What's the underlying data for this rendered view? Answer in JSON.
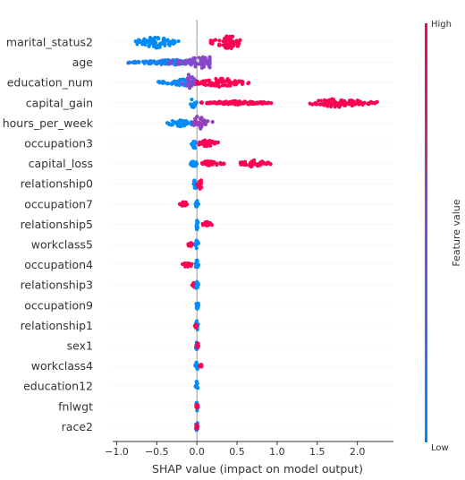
{
  "chart_data": {
    "type": "scatter",
    "subtype": "shap-beeswarm",
    "title": "",
    "xlabel": "SHAP value (impact on model output)",
    "ylabel": "",
    "xlim": [
      -1.05,
      2.45
    ],
    "xticks": [
      -1.0,
      -0.5,
      0.0,
      0.5,
      1.0,
      1.5,
      2.0
    ],
    "xtick_labels": [
      "−1.0",
      "−0.5",
      "0.0",
      "0.5",
      "1.0",
      "1.5",
      "2.0"
    ],
    "grid": false,
    "colorbar": {
      "title": "Feature value",
      "high_label": "High",
      "low_label": "Low",
      "high_color": "#ff0052",
      "mid_color": "#7c4fd8",
      "low_color": "#008bfb"
    },
    "features": [
      {
        "name": "marital_status2",
        "clusters": [
          {
            "lo": -0.8,
            "hi": -0.22,
            "center": -0.52,
            "height": 7,
            "level": 0.0
          },
          {
            "lo": 0.17,
            "hi": 0.58,
            "center": 0.4,
            "height": 8,
            "level": 1.0
          }
        ]
      },
      {
        "name": "age",
        "clusters": [
          {
            "lo": -0.88,
            "hi": 0.0,
            "center": -0.3,
            "height": 3,
            "level": 0.08
          },
          {
            "lo": -0.35,
            "hi": 0.16,
            "center": 0.1,
            "height": 8,
            "level": 0.55
          }
        ]
      },
      {
        "name": "education_num",
        "clusters": [
          {
            "lo": -0.5,
            "hi": -0.05,
            "center": -0.15,
            "height": 4,
            "level": 0.0
          },
          {
            "lo": -0.2,
            "hi": 0.0,
            "center": -0.1,
            "height": 9,
            "level": 0.55
          },
          {
            "lo": 0.0,
            "hi": 0.65,
            "center": 0.3,
            "height": 5,
            "level": 1.0
          }
        ]
      },
      {
        "name": "capital_gain",
        "clusters": [
          {
            "lo": -0.1,
            "hi": 0.0,
            "center": -0.05,
            "height": 6,
            "level": 0.0
          },
          {
            "lo": 0.05,
            "hi": 0.95,
            "center": 0.5,
            "height": 2,
            "level": 1.0
          },
          {
            "lo": 1.4,
            "hi": 2.25,
            "center": 1.75,
            "height": 5,
            "level": 1.0
          }
        ]
      },
      {
        "name": "hours_per_week",
        "clusters": [
          {
            "lo": -0.4,
            "hi": -0.02,
            "center": -0.2,
            "height": 4,
            "level": 0.0
          },
          {
            "lo": -0.05,
            "hi": 0.2,
            "center": 0.02,
            "height": 8,
            "level": 0.6
          }
        ]
      },
      {
        "name": "occupation3",
        "clusters": [
          {
            "lo": -0.08,
            "hi": 0.0,
            "center": -0.03,
            "height": 6,
            "level": 0.0
          },
          {
            "lo": 0.02,
            "hi": 0.28,
            "center": 0.12,
            "height": 4,
            "level": 1.0
          }
        ]
      },
      {
        "name": "capital_loss",
        "clusters": [
          {
            "lo": -0.08,
            "hi": 0.0,
            "center": -0.03,
            "height": 6,
            "level": 0.0
          },
          {
            "lo": 0.02,
            "hi": 0.35,
            "center": 0.15,
            "height": 3,
            "level": 1.0
          },
          {
            "lo": 0.52,
            "hi": 0.92,
            "center": 0.7,
            "height": 4,
            "level": 1.0
          }
        ]
      },
      {
        "name": "relationship0",
        "clusters": [
          {
            "lo": -0.05,
            "hi": 0.0,
            "center": -0.02,
            "height": 6,
            "level": 0.0
          },
          {
            "lo": 0.0,
            "hi": 0.08,
            "center": 0.04,
            "height": 6,
            "level": 1.0
          }
        ]
      },
      {
        "name": "occupation7",
        "clusters": [
          {
            "lo": -0.22,
            "hi": -0.1,
            "center": -0.16,
            "height": 3,
            "level": 1.0
          },
          {
            "lo": -0.02,
            "hi": 0.02,
            "center": 0.0,
            "height": 6,
            "level": 0.0
          }
        ]
      },
      {
        "name": "relationship5",
        "clusters": [
          {
            "lo": -0.02,
            "hi": 0.02,
            "center": 0.0,
            "height": 6,
            "level": 0.0
          },
          {
            "lo": 0.05,
            "hi": 0.19,
            "center": 0.12,
            "height": 3,
            "level": 1.0
          }
        ]
      },
      {
        "name": "workclass5",
        "clusters": [
          {
            "lo": -0.13,
            "hi": -0.04,
            "center": -0.08,
            "height": 3,
            "level": 1.0
          },
          {
            "lo": -0.02,
            "hi": 0.02,
            "center": 0.0,
            "height": 6,
            "level": 0.0
          }
        ]
      },
      {
        "name": "occupation4",
        "clusters": [
          {
            "lo": -0.18,
            "hi": -0.05,
            "center": -0.12,
            "height": 3,
            "level": 1.0
          },
          {
            "lo": -0.02,
            "hi": 0.02,
            "center": 0.0,
            "height": 6,
            "level": 0.0
          }
        ]
      },
      {
        "name": "relationship3",
        "clusters": [
          {
            "lo": -0.06,
            "hi": -0.02,
            "center": -0.04,
            "height": 3,
            "level": 1.0
          },
          {
            "lo": -0.01,
            "hi": 0.02,
            "center": 0.0,
            "height": 6,
            "level": 0.0
          }
        ]
      },
      {
        "name": "occupation9",
        "clusters": [
          {
            "lo": -0.02,
            "hi": 0.02,
            "center": 0.0,
            "height": 6,
            "level": 0.0
          }
        ]
      },
      {
        "name": "relationship1",
        "clusters": [
          {
            "lo": -0.02,
            "hi": 0.02,
            "center": 0.0,
            "height": 6,
            "level": 0.0
          },
          {
            "lo": -0.03,
            "hi": 0.0,
            "center": -0.01,
            "height": 3,
            "level": 1.0
          }
        ]
      },
      {
        "name": "sex1",
        "clusters": [
          {
            "lo": -0.02,
            "hi": 0.02,
            "center": 0.0,
            "height": 6,
            "level": 0.0
          },
          {
            "lo": 0.0,
            "hi": 0.02,
            "center": 0.01,
            "height": 3,
            "level": 1.0
          }
        ]
      },
      {
        "name": "workclass4",
        "clusters": [
          {
            "lo": -0.02,
            "hi": 0.02,
            "center": 0.0,
            "height": 6,
            "level": 0.0
          },
          {
            "lo": 0.03,
            "hi": 0.06,
            "center": 0.05,
            "height": 2,
            "level": 1.0
          }
        ]
      },
      {
        "name": "education12",
        "clusters": [
          {
            "lo": -0.02,
            "hi": 0.02,
            "center": 0.0,
            "height": 6,
            "level": 0.0
          }
        ]
      },
      {
        "name": "fnlwgt",
        "clusters": [
          {
            "lo": -0.02,
            "hi": 0.02,
            "center": 0.0,
            "height": 6,
            "level": 0.0
          },
          {
            "lo": -0.01,
            "hi": 0.01,
            "center": 0.0,
            "height": 3,
            "level": 1.0
          }
        ]
      },
      {
        "name": "race2",
        "clusters": [
          {
            "lo": -0.02,
            "hi": 0.02,
            "center": 0.0,
            "height": 6,
            "level": 0.0
          },
          {
            "lo": -0.01,
            "hi": 0.01,
            "center": 0.0,
            "height": 3,
            "level": 1.0
          }
        ]
      }
    ]
  }
}
